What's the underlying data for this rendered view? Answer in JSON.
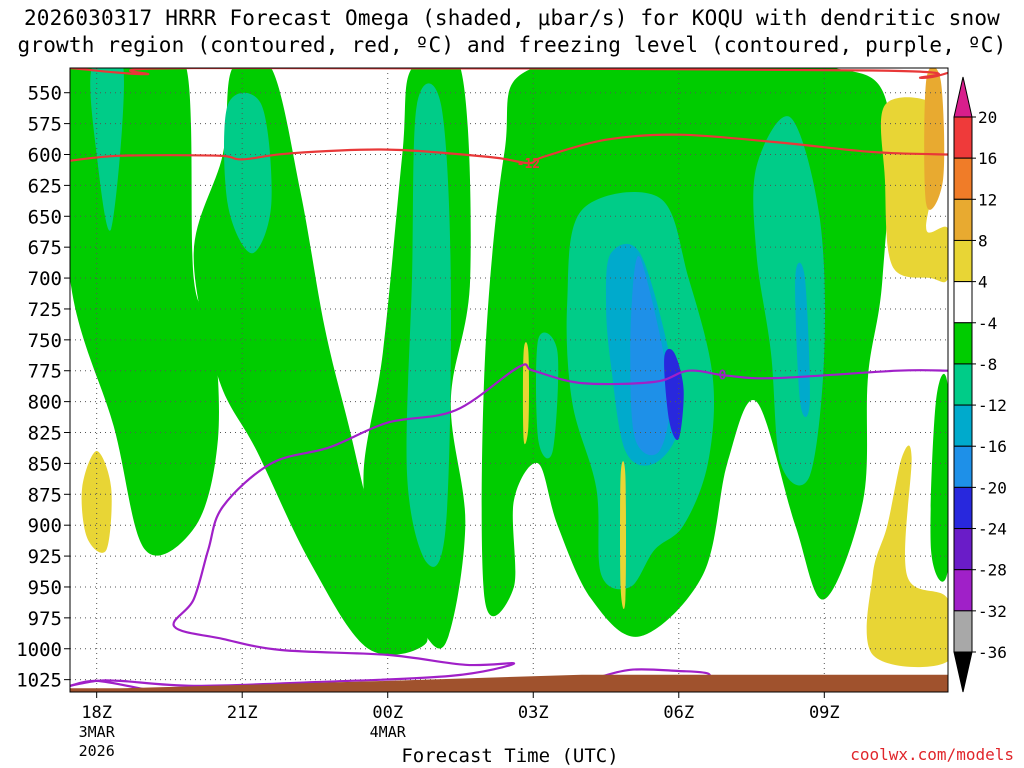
{
  "chart_data": {
    "type": "heatmap",
    "title_line1": "2026030317 HRRR Forecast Omega (shaded, μbar/s) for KOQU with dendritic snow",
    "title_line2": "growth region (contoured, red, ºC) and freezing level (contoured, purple, ºC)",
    "xlabel": "Forecast Time (UTC)",
    "credit": "coolwx.com/models",
    "ylim": [
      1035,
      530
    ],
    "xlim": [
      -0.55,
      17.55
    ],
    "y_ticks": [
      550,
      575,
      600,
      625,
      650,
      675,
      700,
      725,
      750,
      775,
      800,
      825,
      850,
      875,
      900,
      925,
      950,
      975,
      1000,
      1025
    ],
    "x_ticks": [
      {
        "hour": 0,
        "lines": [
          "18Z",
          "3MAR",
          "2026"
        ]
      },
      {
        "hour": 3,
        "lines": [
          "21Z"
        ]
      },
      {
        "hour": 6,
        "lines": [
          "00Z",
          "4MAR"
        ]
      },
      {
        "hour": 9,
        "lines": [
          "03Z"
        ]
      },
      {
        "hour": 12,
        "lines": [
          "06Z"
        ]
      },
      {
        "hour": 15,
        "lines": [
          "09Z"
        ]
      }
    ],
    "colorbar": {
      "labels": [
        "20",
        "16",
        "12",
        "8",
        "4",
        "-4",
        "-8",
        "-12",
        "-16",
        "-20",
        "-24",
        "-28",
        "-32",
        "-36"
      ],
      "colors": [
        "#d81e8c",
        "#ef3a3a",
        "#f07c28",
        "#e8aa30",
        "#e8d535",
        "#ffffff",
        "#00cc00",
        "#00cc88",
        "#00aacc",
        "#1e90e8",
        "#2828dd",
        "#6a1cc8",
        "#a020c8",
        "#a8a8a8",
        "#000000"
      ]
    },
    "omega_regions": [
      {
        "level": "-8",
        "color": "#00cc00",
        "points": [
          [
            0.95,
            530
          ],
          [
            1.85,
            530
          ],
          [
            2.0,
            700
          ],
          [
            2.4,
            740
          ],
          [
            2.5,
            830
          ],
          [
            2.05,
            900
          ],
          [
            1.0,
            920
          ],
          [
            0.35,
            820
          ],
          [
            -0.55,
            700
          ],
          [
            -0.55,
            530
          ]
        ]
      },
      {
        "level": "-8",
        "color": "#00cc00",
        "points": [
          [
            2.8,
            530
          ],
          [
            3.6,
            530
          ],
          [
            4.2,
            630
          ],
          [
            4.7,
            740
          ],
          [
            5.2,
            820
          ],
          [
            5.7,
            900
          ],
          [
            6.3,
            960
          ],
          [
            6.8,
            995
          ],
          [
            5.6,
            1000
          ],
          [
            4.4,
            930
          ],
          [
            3.3,
            840
          ],
          [
            2.5,
            780
          ],
          [
            2.0,
            680
          ],
          [
            2.6,
            600
          ]
        ]
      },
      {
        "level": "-8",
        "color": "#00cc00",
        "points": [
          [
            6.5,
            530
          ],
          [
            7.5,
            530
          ],
          [
            7.7,
            700
          ],
          [
            7.3,
            800
          ],
          [
            7.6,
            900
          ],
          [
            7.2,
            995
          ],
          [
            6.6,
            980
          ],
          [
            5.8,
            930
          ],
          [
            5.5,
            860
          ],
          [
            5.9,
            760
          ],
          [
            6.3,
            600
          ]
        ]
      },
      {
        "level": "-8",
        "color": "#00cc00",
        "points": [
          [
            9.0,
            530
          ],
          [
            13.0,
            530
          ],
          [
            15.2,
            530
          ],
          [
            16.3,
            560
          ],
          [
            16.2,
            700
          ],
          [
            15.9,
            780
          ],
          [
            15.8,
            880
          ],
          [
            15.0,
            960
          ],
          [
            14.4,
            900
          ],
          [
            13.6,
            800
          ],
          [
            13.0,
            850
          ],
          [
            12.5,
            940
          ],
          [
            11.2,
            990
          ],
          [
            10.2,
            960
          ],
          [
            9.5,
            900
          ],
          [
            9.1,
            850
          ],
          [
            8.6,
            880
          ],
          [
            8.6,
            950
          ],
          [
            8.0,
            960
          ],
          [
            8.0,
            770
          ],
          [
            8.4,
            600
          ]
        ]
      },
      {
        "level": "-8",
        "color": "#00cc00",
        "points": [
          [
            17.55,
            790
          ],
          [
            17.55,
            935
          ],
          [
            17.2,
            920
          ],
          [
            17.3,
            800
          ]
        ]
      },
      {
        "level": "-12",
        "color": "#00cc88",
        "points": [
          [
            -0.1,
            530
          ],
          [
            0.55,
            530
          ],
          [
            0.3,
            660
          ],
          [
            0.0,
            600
          ]
        ]
      },
      {
        "level": "-12",
        "color": "#00cc88",
        "points": [
          [
            2.7,
            560
          ],
          [
            3.4,
            560
          ],
          [
            3.6,
            640
          ],
          [
            3.2,
            680
          ],
          [
            2.7,
            640
          ]
        ]
      },
      {
        "level": "-12",
        "color": "#00cc88",
        "points": [
          [
            6.6,
            560
          ],
          [
            7.1,
            560
          ],
          [
            7.3,
            700
          ],
          [
            7.2,
            900
          ],
          [
            6.8,
            930
          ],
          [
            6.4,
            860
          ],
          [
            6.5,
            700
          ]
        ]
      },
      {
        "level": "-12",
        "color": "#00cc88",
        "points": [
          [
            10.0,
            645
          ],
          [
            11.6,
            635
          ],
          [
            12.2,
            700
          ],
          [
            12.7,
            780
          ],
          [
            12.6,
            850
          ],
          [
            12.1,
            900
          ],
          [
            11.5,
            920
          ],
          [
            11.0,
            950
          ],
          [
            10.4,
            940
          ],
          [
            10.3,
            870
          ],
          [
            9.8,
            800
          ],
          [
            9.7,
            720
          ]
        ]
      },
      {
        "level": "-12",
        "color": "#00cc88",
        "points": [
          [
            9.1,
            750
          ],
          [
            9.5,
            760
          ],
          [
            9.4,
            840
          ],
          [
            9.1,
            830
          ]
        ]
      },
      {
        "level": "-12",
        "color": "#00cc88",
        "points": [
          [
            13.6,
            610
          ],
          [
            14.3,
            570
          ],
          [
            14.9,
            650
          ],
          [
            15.0,
            760
          ],
          [
            14.7,
            860
          ],
          [
            14.1,
            850
          ],
          [
            13.9,
            760
          ],
          [
            13.6,
            680
          ]
        ]
      },
      {
        "level": "-16",
        "color": "#00aacc",
        "points": [
          [
            10.6,
            680
          ],
          [
            11.2,
            680
          ],
          [
            11.8,
            760
          ],
          [
            12.0,
            820
          ],
          [
            11.5,
            850
          ],
          [
            10.9,
            840
          ],
          [
            10.6,
            770
          ],
          [
            10.5,
            720
          ]
        ]
      },
      {
        "level": "-16",
        "color": "#00aacc",
        "points": [
          [
            14.4,
            700
          ],
          [
            14.6,
            700
          ],
          [
            14.7,
            800
          ],
          [
            14.5,
            800
          ]
        ]
      },
      {
        "level": "-20",
        "color": "#1e90e8",
        "points": [
          [
            11.1,
            690
          ],
          [
            11.3,
            695
          ],
          [
            11.8,
            790
          ],
          [
            11.6,
            840
          ],
          [
            11.1,
            830
          ],
          [
            11.0,
            760
          ]
        ]
      },
      {
        "level": "-24",
        "color": "#2828dd",
        "points": [
          [
            11.7,
            765
          ],
          [
            11.9,
            760
          ],
          [
            12.1,
            790
          ],
          [
            12.0,
            830
          ],
          [
            11.8,
            815
          ]
        ]
      },
      {
        "level": "4",
        "color": "#e8d535",
        "points": [
          [
            16.25,
            560
          ],
          [
            17.3,
            560
          ],
          [
            17.4,
            600
          ],
          [
            17.1,
            660
          ],
          [
            17.55,
            660
          ],
          [
            17.55,
            700
          ],
          [
            17.2,
            700
          ],
          [
            16.4,
            690
          ],
          [
            16.25,
            620
          ]
        ]
      },
      {
        "level": "8",
        "color": "#e8aa30",
        "points": [
          [
            17.1,
            540
          ],
          [
            17.4,
            540
          ],
          [
            17.45,
            620
          ],
          [
            17.1,
            640
          ]
        ]
      },
      {
        "level": "4",
        "color": "#e8d535",
        "points": [
          [
            -0.3,
            870
          ],
          [
            0.0,
            840
          ],
          [
            0.3,
            870
          ],
          [
            0.2,
            920
          ],
          [
            -0.2,
            910
          ]
        ]
      },
      {
        "level": "4",
        "color": "#e8d535",
        "points": [
          [
            8.8,
            760
          ],
          [
            8.9,
            760
          ],
          [
            8.9,
            820
          ],
          [
            8.8,
            830
          ]
        ]
      },
      {
        "level": "4",
        "color": "#e8d535",
        "points": [
          [
            10.8,
            860
          ],
          [
            10.9,
            860
          ],
          [
            10.9,
            960
          ],
          [
            10.8,
            950
          ]
        ]
      },
      {
        "level": "4",
        "color": "#e8d535",
        "points": [
          [
            16.6,
            845
          ],
          [
            16.8,
            845
          ],
          [
            16.7,
            940
          ],
          [
            17.55,
            960
          ],
          [
            17.55,
            1010
          ],
          [
            16.0,
            1005
          ],
          [
            16.0,
            940
          ],
          [
            16.3,
            900
          ]
        ]
      }
    ],
    "contours": [
      {
        "name": "dendritic-top",
        "color": "#e83838",
        "label": "",
        "points": [
          [
            -0.55,
            530
          ],
          [
            1.0,
            535
          ],
          [
            2.0,
            530
          ],
          [
            16.0,
            532
          ],
          [
            17.0,
            538
          ],
          [
            17.55,
            534
          ]
        ]
      },
      {
        "name": "dendritic-minus12",
        "color": "#e83838",
        "label": "-12",
        "label_at": [
          8.9,
          607
        ],
        "points": [
          [
            -0.55,
            605
          ],
          [
            0.5,
            601
          ],
          [
            2.5,
            601
          ],
          [
            3.0,
            604
          ],
          [
            4.0,
            599
          ],
          [
            6.0,
            596
          ],
          [
            8.1,
            602
          ],
          [
            8.9,
            607
          ],
          [
            9.2,
            602
          ],
          [
            10.5,
            588
          ],
          [
            12.0,
            584
          ],
          [
            14.0,
            590
          ],
          [
            16.0,
            598
          ],
          [
            17.55,
            600
          ]
        ]
      },
      {
        "name": "freezing-level",
        "color": "#a020c8",
        "label": "0",
        "label_at": [
          12.9,
          778
        ],
        "points": [
          [
            17.55,
            775
          ],
          [
            16.5,
            775
          ],
          [
            14.0,
            781
          ],
          [
            13.0,
            779
          ],
          [
            12.2,
            775
          ],
          [
            11.5,
            784
          ],
          [
            10.0,
            785
          ],
          [
            9.0,
            775
          ],
          [
            8.7,
            772
          ],
          [
            7.4,
            807
          ],
          [
            6.0,
            817
          ],
          [
            4.8,
            837
          ],
          [
            3.6,
            850
          ],
          [
            2.6,
            885
          ],
          [
            2.3,
            920
          ],
          [
            2.0,
            960
          ],
          [
            1.6,
            982
          ],
          [
            2.6,
            992
          ],
          [
            3.8,
            1001
          ],
          [
            6.0,
            1005
          ],
          [
            7.6,
            1013
          ],
          [
            8.6,
            1012
          ],
          [
            7.3,
            1022
          ],
          [
            4.5,
            1027
          ],
          [
            2.0,
            1030
          ],
          [
            0.5,
            1026
          ],
          [
            0.0,
            1026
          ],
          [
            -0.55,
            1030
          ]
        ]
      },
      {
        "name": "freezing-level-lower",
        "color": "#a020c8",
        "label": "",
        "points": [
          [
            -0.55,
            1030
          ],
          [
            0.0,
            1026
          ],
          [
            1.0,
            1033
          ]
        ]
      },
      {
        "name": "freezing-level-blob",
        "color": "#a020c8",
        "label": "",
        "points": [
          [
            10.2,
            1025
          ],
          [
            11.0,
            1017
          ],
          [
            12.0,
            1018
          ],
          [
            12.6,
            1020
          ],
          [
            12.6,
            1027
          ]
        ]
      }
    ],
    "terrain_color": "#a0522d"
  }
}
